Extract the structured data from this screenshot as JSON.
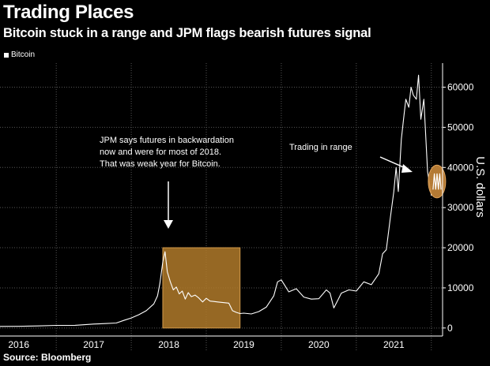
{
  "chart_data": {
    "type": "line",
    "title": "Trading Places",
    "subtitle": "Bitcoin stuck in a range and JPM flags bearish futures signal",
    "source": "Source: Bloomberg",
    "ylabel": "U.S. dollars",
    "ylim": [
      -2000,
      66000
    ],
    "yticks": [
      0,
      10000,
      20000,
      30000,
      40000,
      50000,
      60000
    ],
    "ytick_labels": [
      "0",
      "10000",
      "20000",
      "30000",
      "40000",
      "50000",
      "60000"
    ],
    "xlim": [
      2015.75,
      2021.65
    ],
    "xticks": [
      {
        "label": "2016",
        "center": 2016.0
      },
      {
        "label": "2017",
        "center": 2017.0
      },
      {
        "label": "2018",
        "center": 2018.0
      },
      {
        "label": "2019",
        "center": 2019.0
      },
      {
        "label": "2020",
        "center": 2020.0
      },
      {
        "label": "2021",
        "center": 2021.0
      }
    ],
    "year_boundaries": [
      2016.5,
      2017.5,
      2018.5,
      2019.5,
      2020.5,
      2021.5
    ],
    "grid": true,
    "legend": "top-left",
    "series": [
      {
        "name": "Bitcoin",
        "x": [
          2015.75,
          2016.0,
          2016.25,
          2016.5,
          2016.75,
          2017.0,
          2017.15,
          2017.3,
          2017.4,
          2017.5,
          2017.6,
          2017.7,
          2017.8,
          2017.85,
          2017.88,
          2017.92,
          2017.95,
          2017.98,
          2018.02,
          2018.06,
          2018.1,
          2018.14,
          2018.18,
          2018.22,
          2018.26,
          2018.3,
          2018.35,
          2018.4,
          2018.45,
          2018.5,
          2018.55,
          2018.6,
          2018.65,
          2018.7,
          2018.75,
          2018.8,
          2018.85,
          2018.9,
          2018.95,
          2019.0,
          2019.1,
          2019.2,
          2019.3,
          2019.4,
          2019.45,
          2019.5,
          2019.55,
          2019.6,
          2019.7,
          2019.8,
          2019.9,
          2020.0,
          2020.1,
          2020.15,
          2020.2,
          2020.25,
          2020.3,
          2020.4,
          2020.5,
          2020.6,
          2020.7,
          2020.8,
          2020.85,
          2020.9,
          2020.95,
          2021.0,
          2021.03,
          2021.06,
          2021.1,
          2021.13,
          2021.16,
          2021.2,
          2021.23,
          2021.26,
          2021.3,
          2021.33,
          2021.36,
          2021.4,
          2021.45,
          2021.5
        ],
        "values": [
          400,
          420,
          520,
          650,
          680,
          980,
          1100,
          1250,
          1900,
          2500,
          3300,
          4300,
          6000,
          8000,
          11000,
          16500,
          19000,
          14000,
          11500,
          9500,
          10200,
          8500,
          9200,
          7200,
          8800,
          7800,
          8200,
          7500,
          6500,
          7400,
          6700,
          6600,
          6500,
          6400,
          6300,
          6200,
          4300,
          3900,
          3600,
          3700,
          3500,
          4100,
          5200,
          8000,
          11500,
          12000,
          10500,
          9000,
          9800,
          7700,
          7200,
          7300,
          9500,
          8700,
          5000,
          6800,
          8700,
          9500,
          9200,
          11500,
          10800,
          13500,
          18500,
          19500,
          27000,
          34000,
          40000,
          34000,
          47000,
          52000,
          57000,
          55000,
          60000,
          58000,
          57000,
          63000,
          52000,
          57000,
          39000,
          33000
        ]
      }
    ],
    "highlights": [
      {
        "label": "2018 range box",
        "x": [
          2017.92,
          2018.95
        ],
        "y": [
          0,
          20000
        ],
        "color": "#b07a2a"
      },
      {
        "label": "range ellipse",
        "x": [
          2021.55,
          2021.6
        ],
        "y": [
          33000,
          40000
        ],
        "color": "#c8873a"
      }
    ],
    "annotations": [
      {
        "name": "jpm-note",
        "lines": [
          "JPM says futures in backwardation",
          "now and were for most of 2018.",
          "That was weak year for Bitcoin."
        ]
      },
      {
        "name": "range-note",
        "lines": [
          "Trading in range"
        ]
      }
    ],
    "colors": {
      "line": "#ffffff",
      "background": "#000000",
      "highlight": "#c8873a",
      "grid": "#555555"
    }
  }
}
